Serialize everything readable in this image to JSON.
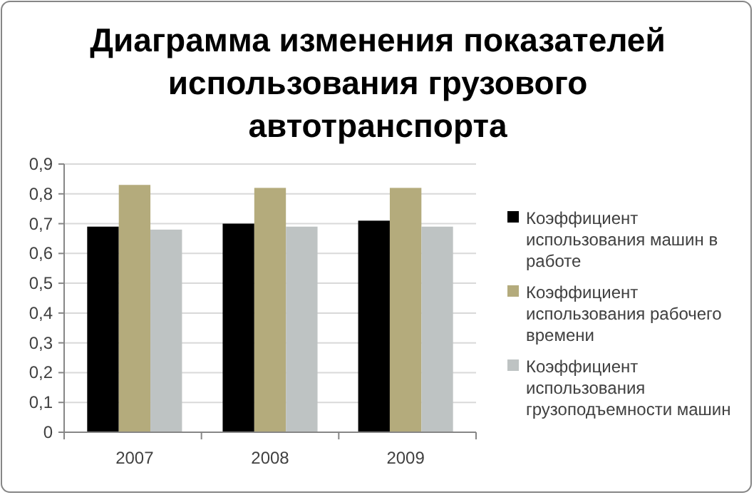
{
  "chart_data": {
    "type": "bar",
    "title": "Диаграмма изменения показателей использования грузового автотранспорта",
    "categories": [
      "2007",
      "2008",
      "2009"
    ],
    "series": [
      {
        "name": "Коэффициент использования машин в работе",
        "color": "#000000",
        "values": [
          0.69,
          0.7,
          0.71
        ]
      },
      {
        "name": "Коэффициент использования рабочего времени",
        "color": "#b4ab7c",
        "values": [
          0.83,
          0.82,
          0.82
        ]
      },
      {
        "name": "Коэффициент использования грузоподъемности машин",
        "color": "#bec3c3",
        "values": [
          0.68,
          0.69,
          0.69
        ]
      }
    ],
    "ylim": [
      0,
      0.9
    ],
    "yticks": [
      0,
      {
        "value": 0.1,
        "label": "0,1"
      },
      {
        "value": 0.2,
        "label": "0,2"
      },
      {
        "value": 0.3,
        "label": "0,3"
      },
      {
        "value": 0.4,
        "label": "0,4"
      },
      {
        "value": 0.5,
        "label": "0,5"
      },
      {
        "value": 0.6,
        "label": "0,6"
      },
      {
        "value": 0.7,
        "label": "0,7"
      },
      {
        "value": 0.8,
        "label": "0,8"
      },
      {
        "value": 0.9,
        "label": "0,9"
      }
    ],
    "grid": "y",
    "legend": "right"
  }
}
